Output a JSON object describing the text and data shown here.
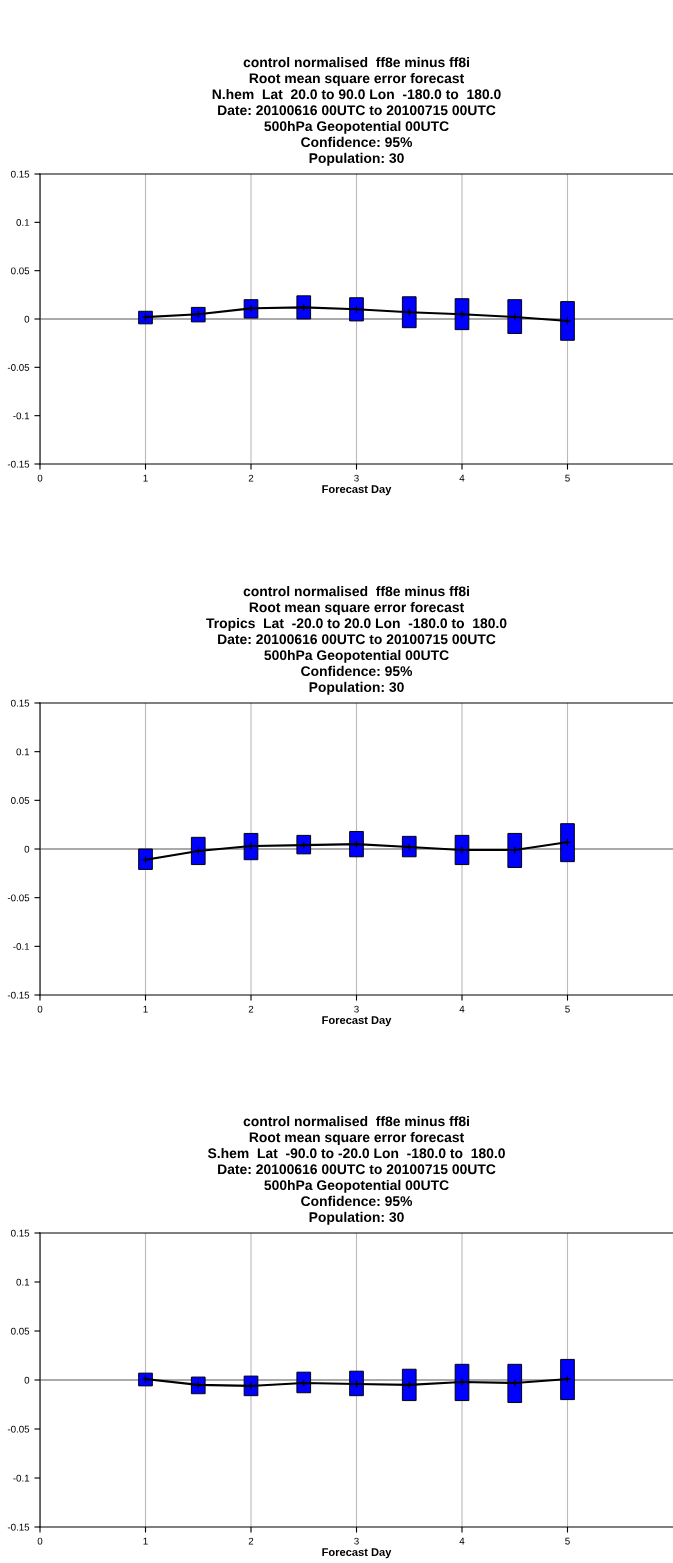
{
  "chart_data": [
    {
      "type": "line",
      "title": "control normalised  ff8e minus ff8i\nRoot mean square error forecast\nN.hem  Lat  20.0 to 90.0 Lon  -180.0 to  180.0\nDate: 20100616 00UTC to 20100715 00UTC\n500hPa Geopotential 00UTC\nConfidence: 95%\nPopulation: 30",
      "xlabel": "Forecast Day",
      "x": [
        1,
        1.5,
        2,
        2.5,
        3,
        3.5,
        4,
        4.5,
        5
      ],
      "xlim": [
        0,
        6
      ],
      "xticks": [
        0,
        1,
        2,
        3,
        4,
        5
      ],
      "ylim": [
        -0.15,
        0.15
      ],
      "yticks": [
        -0.15,
        -0.1,
        -0.05,
        0,
        0.05,
        0.1,
        0.15
      ],
      "grid": "x",
      "marker": "cross",
      "ref_lines": [
        {
          "axis": "y",
          "value": 0,
          "color": "#aaaaaa"
        }
      ],
      "series": [
        {
          "type": "bar",
          "color": "#0000ff",
          "base": [
            -0.005,
            -0.003,
            0.001,
            0.0,
            -0.002,
            -0.009,
            -0.011,
            -0.015,
            -0.022
          ],
          "values": [
            0.013,
            0.015,
            0.019,
            0.024,
            0.024,
            0.032,
            0.032,
            0.035,
            0.04
          ]
        },
        {
          "color": "#000000",
          "values": [
            0.002,
            0.005,
            0.011,
            0.012,
            0.01,
            0.007,
            0.005,
            0.002,
            -0.002
          ]
        }
      ]
    },
    {
      "type": "line",
      "title": "control normalised  ff8e minus ff8i\nRoot mean square error forecast\nTropics  Lat  -20.0 to 20.0 Lon  -180.0 to  180.0\nDate: 20100616 00UTC to 20100715 00UTC\n500hPa Geopotential 00UTC\nConfidence: 95%\nPopulation: 30",
      "xlabel": "Forecast Day",
      "x": [
        1,
        1.5,
        2,
        2.5,
        3,
        3.5,
        4,
        4.5,
        5
      ],
      "xlim": [
        0,
        6
      ],
      "xticks": [
        0,
        1,
        2,
        3,
        4,
        5
      ],
      "ylim": [
        -0.15,
        0.15
      ],
      "yticks": [
        -0.15,
        -0.1,
        -0.05,
        0,
        0.05,
        0.1,
        0.15
      ],
      "grid": "x",
      "marker": "cross",
      "ref_lines": [
        {
          "axis": "y",
          "value": 0,
          "color": "#aaaaaa"
        }
      ],
      "series": [
        {
          "type": "bar",
          "color": "#0000ff",
          "base": [
            -0.021,
            -0.016,
            -0.011,
            -0.005,
            -0.008,
            -0.008,
            -0.016,
            -0.019,
            -0.013
          ],
          "values": [
            0.021,
            0.028,
            0.027,
            0.019,
            0.026,
            0.021,
            0.03,
            0.035,
            0.039
          ]
        },
        {
          "color": "#000000",
          "values": [
            -0.011,
            -0.002,
            0.003,
            0.004,
            0.005,
            0.002,
            -0.001,
            -0.001,
            0.007
          ]
        }
      ]
    },
    {
      "type": "line",
      "title": "control normalised  ff8e minus ff8i\nRoot mean square error forecast\nS.hem  Lat  -90.0 to -20.0 Lon  -180.0 to  180.0\nDate: 20100616 00UTC to 20100715 00UTC\n500hPa Geopotential 00UTC\nConfidence: 95%\nPopulation: 30",
      "xlabel": "Forecast Day",
      "x": [
        1,
        1.5,
        2,
        2.5,
        3,
        3.5,
        4,
        4.5,
        5
      ],
      "xlim": [
        0,
        6
      ],
      "xticks": [
        0,
        1,
        2,
        3,
        4,
        5
      ],
      "ylim": [
        -0.15,
        0.15
      ],
      "yticks": [
        -0.15,
        -0.1,
        -0.05,
        0,
        0.05,
        0.1,
        0.15
      ],
      "grid": "x",
      "marker": "cross",
      "ref_lines": [
        {
          "axis": "y",
          "value": 0,
          "color": "#aaaaaa"
        }
      ],
      "series": [
        {
          "type": "bar",
          "color": "#0000ff",
          "base": [
            -0.006,
            -0.014,
            -0.016,
            -0.013,
            -0.016,
            -0.021,
            -0.021,
            -0.023,
            -0.02
          ],
          "values": [
            0.013,
            0.017,
            0.02,
            0.021,
            0.025,
            0.032,
            0.037,
            0.039,
            0.041
          ]
        },
        {
          "color": "#000000",
          "values": [
            0.001,
            -0.005,
            -0.006,
            -0.003,
            -0.004,
            -0.005,
            -0.002,
            -0.003,
            0.001
          ]
        }
      ]
    }
  ]
}
